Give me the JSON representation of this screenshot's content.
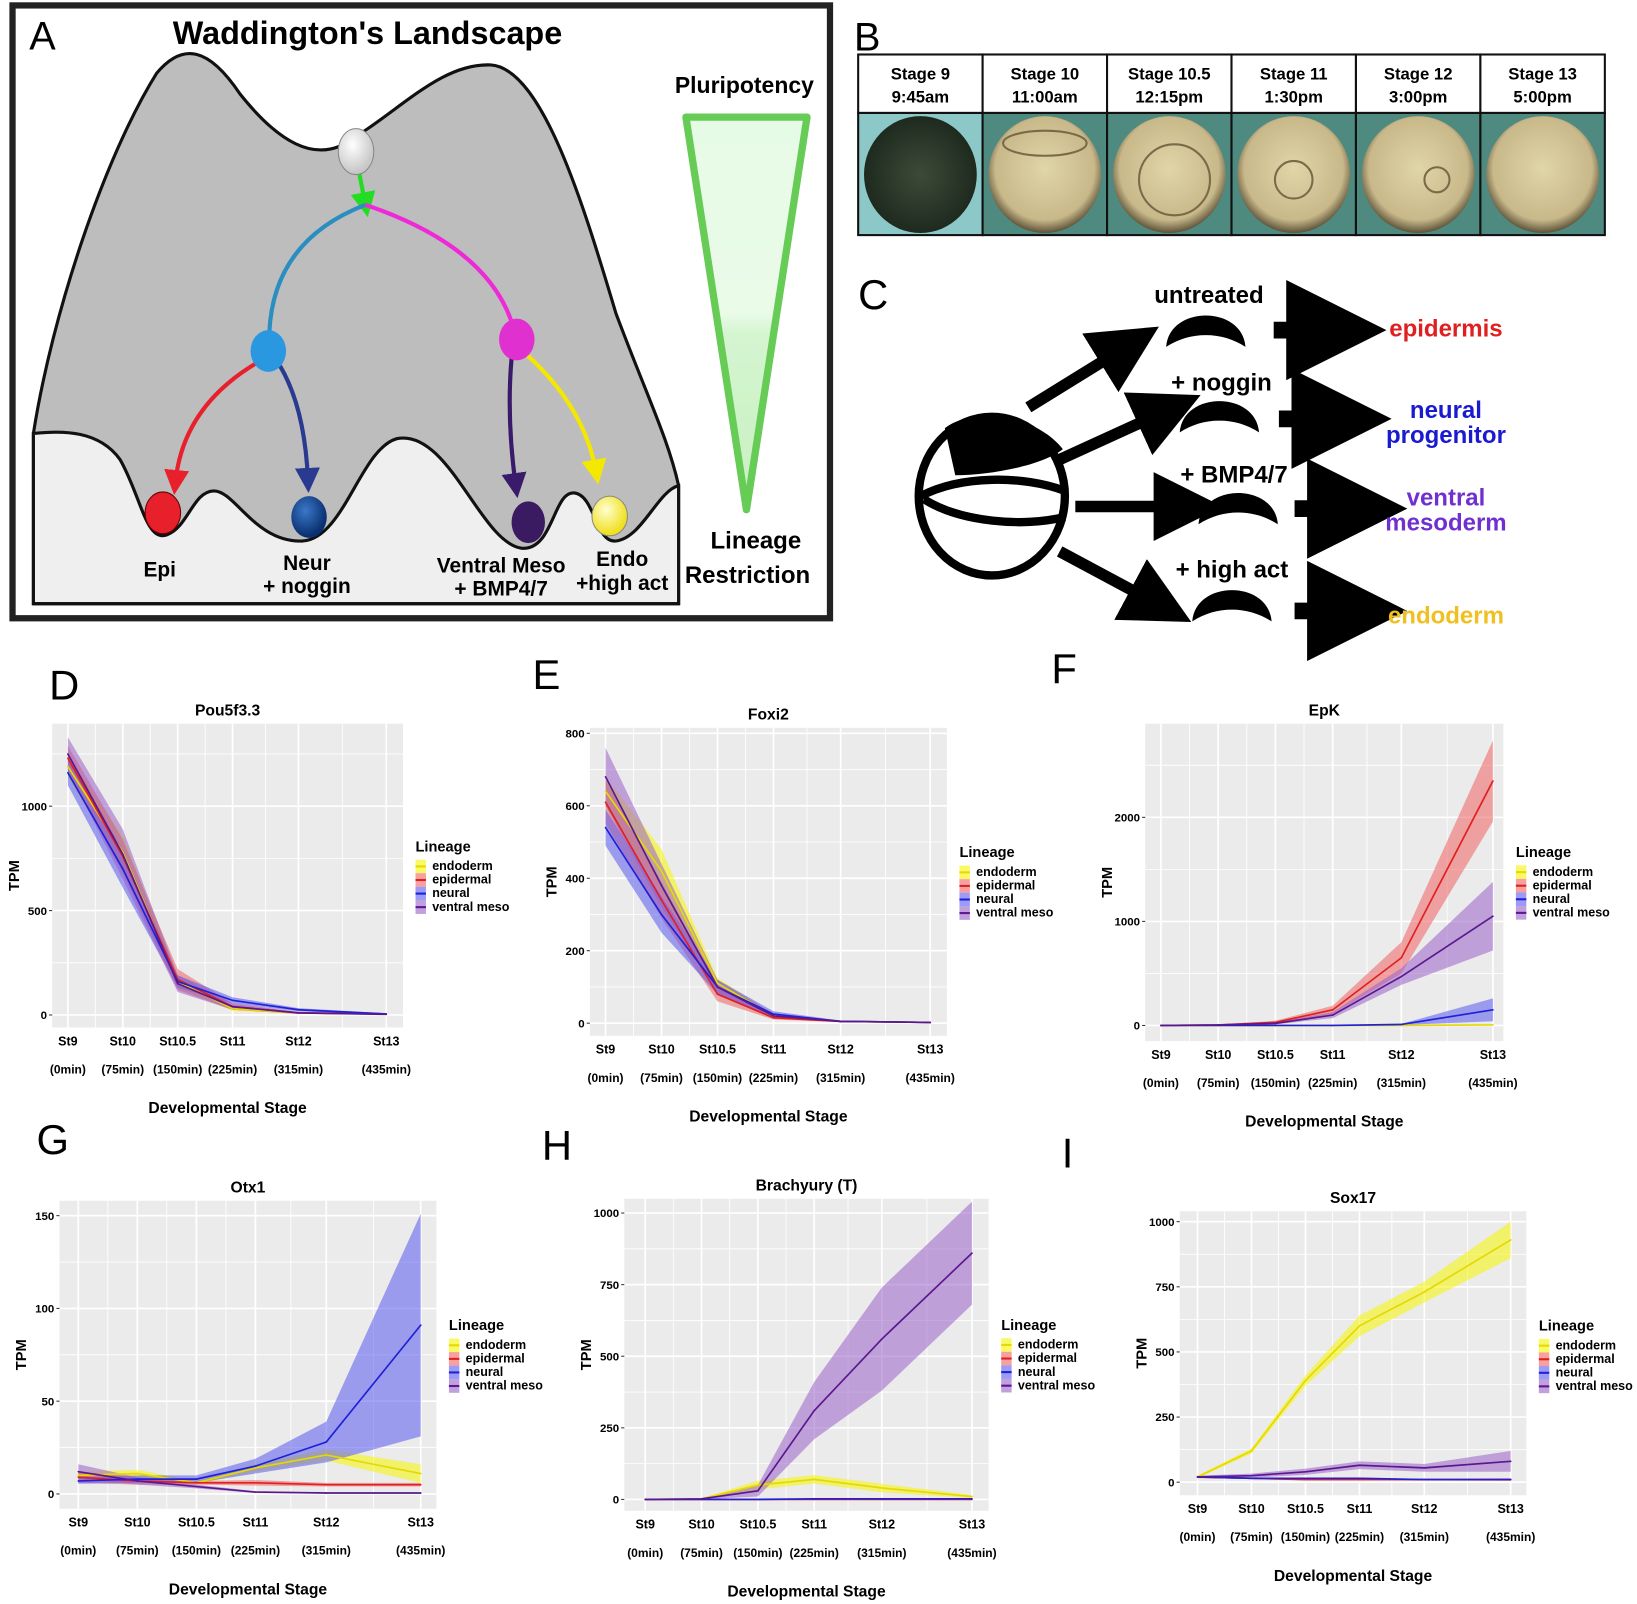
{
  "panel_a": {
    "letter": "A",
    "title": "Waddington's Landscape",
    "labels": {
      "epi": "Epi",
      "neur": "Neur",
      "neur_sub": "+ noggin",
      "vm": "Ventral Meso",
      "vm_sub": "+ BMP4/7",
      "endo": "Endo",
      "endo_sub": "+high act"
    },
    "pluripotency": "Pluripotency",
    "lineage": "Lineage",
    "restriction": "Restriction"
  },
  "panel_b": {
    "letter": "B",
    "stages": [
      {
        "stage": "Stage 9",
        "time": "9:45am"
      },
      {
        "stage": "Stage 10",
        "time": "11:00am"
      },
      {
        "stage": "Stage 10.5",
        "time": "12:15pm"
      },
      {
        "stage": "Stage 11",
        "time": "1:30pm"
      },
      {
        "stage": "Stage 12",
        "time": "3:00pm"
      },
      {
        "stage": "Stage 13",
        "time": "5:00pm"
      }
    ]
  },
  "panel_c": {
    "letter": "C",
    "treatments": [
      "untreated",
      "+ noggin",
      "+ BMP4/7",
      "+ high act"
    ],
    "outcomes": [
      {
        "lines": [
          "epidermis"
        ],
        "color": "#e02020"
      },
      {
        "lines": [
          "neural",
          "progenitor"
        ],
        "color": "#1a1ad0"
      },
      {
        "lines": [
          "ventral",
          "mesoderm"
        ],
        "color": "#7030d0"
      },
      {
        "lines": [
          "endoderm"
        ],
        "color": "#f0c020"
      }
    ]
  },
  "colors": {
    "endoderm": {
      "line": "#e6d800",
      "band": "#f5f500"
    },
    "epidermal": {
      "line": "#e02020",
      "band": "#f06060"
    },
    "neural": {
      "line": "#2020d8",
      "band": "#5a5af0"
    },
    "ventral meso": {
      "line": "#5a1890",
      "band": "#9a60c8"
    }
  },
  "chart_data": [
    {
      "letter": "D",
      "type": "line",
      "title": "Pou5f3.3",
      "xlabel": "Developmental Stage",
      "ylabel": "TPM",
      "categories": [
        "St9",
        "St10",
        "St10.5",
        "St11",
        "St12",
        "St13"
      ],
      "sublabels": [
        "(0min)",
        "(75min)",
        "(150min)",
        "(225min)",
        "(315min)",
        "(435min)"
      ],
      "x": [
        0,
        75,
        150,
        225,
        315,
        435
      ],
      "ylim": [
        -60,
        1395
      ],
      "yticks": [
        0,
        500,
        1000
      ],
      "grid": true,
      "legend_title": "Lineage",
      "legend": "right",
      "series": [
        {
          "name": "endoderm",
          "values": [
            1190,
            780,
            160,
            30,
            10,
            5
          ],
          "spread": [
            50,
            80,
            30,
            10,
            5,
            3
          ]
        },
        {
          "name": "epidermal",
          "values": [
            1230,
            760,
            170,
            40,
            10,
            5
          ],
          "spread": [
            60,
            80,
            50,
            15,
            5,
            3
          ]
        },
        {
          "name": "neural",
          "values": [
            1160,
            700,
            160,
            70,
            25,
            5
          ],
          "spread": [
            60,
            90,
            30,
            15,
            8,
            3
          ]
        },
        {
          "name": "ventral meso",
          "values": [
            1250,
            770,
            150,
            40,
            10,
            3
          ],
          "spread": [
            80,
            120,
            40,
            15,
            5,
            3
          ]
        }
      ]
    },
    {
      "letter": "E",
      "type": "line",
      "title": "Foxi2",
      "xlabel": "Developmental Stage",
      "ylabel": "TPM",
      "categories": [
        "St9",
        "St10",
        "St10.5",
        "St11",
        "St12",
        "St13"
      ],
      "sublabels": [
        "(0min)",
        "(75min)",
        "(150min)",
        "(225min)",
        "(315min)",
        "(435min)"
      ],
      "x": [
        0,
        75,
        150,
        225,
        315,
        435
      ],
      "ylim": [
        -35,
        815
      ],
      "yticks": [
        0,
        200,
        400,
        600,
        800
      ],
      "grid": true,
      "legend_title": "Lineage",
      "legend": "right",
      "series": [
        {
          "name": "endoderm",
          "values": [
            640,
            420,
            110,
            20,
            5,
            2
          ],
          "spread": [
            40,
            60,
            15,
            5,
            2,
            1
          ]
        },
        {
          "name": "epidermal",
          "values": [
            610,
            340,
            80,
            15,
            5,
            2
          ],
          "spread": [
            60,
            50,
            20,
            5,
            2,
            1
          ]
        },
        {
          "name": "neural",
          "values": [
            540,
            300,
            100,
            25,
            5,
            2
          ],
          "spread": [
            50,
            50,
            20,
            8,
            2,
            1
          ]
        },
        {
          "name": "ventral meso",
          "values": [
            680,
            380,
            100,
            20,
            5,
            2
          ],
          "spread": [
            80,
            60,
            20,
            5,
            2,
            1
          ]
        }
      ]
    },
    {
      "letter": "F",
      "type": "line",
      "title": "EpK",
      "xlabel": "Developmental Stage",
      "ylabel": "TPM",
      "categories": [
        "St9",
        "St10",
        "St10.5",
        "St11",
        "St12",
        "St13"
      ],
      "sublabels": [
        "(0min)",
        "(75min)",
        "(150min)",
        "(225min)",
        "(315min)",
        "(435min)"
      ],
      "x": [
        0,
        75,
        150,
        225,
        315,
        435
      ],
      "ylim": [
        -150,
        2900
      ],
      "yticks": [
        0,
        1000,
        2000
      ],
      "grid": true,
      "legend_title": "Lineage",
      "legend": "right",
      "series": [
        {
          "name": "endoderm",
          "values": [
            0,
            0,
            0,
            0,
            0,
            5
          ],
          "spread": [
            0,
            0,
            0,
            0,
            2,
            5
          ]
        },
        {
          "name": "epidermal",
          "values": [
            0,
            5,
            30,
            150,
            650,
            2350
          ],
          "spread": [
            2,
            5,
            15,
            40,
            150,
            390
          ]
        },
        {
          "name": "neural",
          "values": [
            0,
            0,
            0,
            0,
            10,
            150
          ],
          "spread": [
            0,
            0,
            1,
            2,
            5,
            110
          ]
        },
        {
          "name": "ventral meso",
          "values": [
            0,
            5,
            20,
            100,
            470,
            1050
          ],
          "spread": [
            2,
            5,
            10,
            30,
            80,
            330
          ]
        }
      ]
    },
    {
      "letter": "G",
      "type": "line",
      "title": "Otx1",
      "xlabel": "Developmental Stage",
      "ylabel": "TPM",
      "categories": [
        "St9",
        "St10",
        "St10.5",
        "St11",
        "St12",
        "St13"
      ],
      "sublabels": [
        "(0min)",
        "(75min)",
        "(150min)",
        "(225min)",
        "(315min)",
        "(435min)"
      ],
      "x": [
        0,
        75,
        150,
        225,
        315,
        435
      ],
      "ylim": [
        -8,
        158
      ],
      "yticks": [
        0,
        50,
        100,
        150
      ],
      "grid": true,
      "legend_title": "Lineage",
      "legend": "right",
      "series": [
        {
          "name": "endoderm",
          "values": [
            10,
            11,
            6,
            14,
            21,
            11
          ],
          "spread": [
            2,
            2,
            1,
            2,
            3,
            5
          ]
        },
        {
          "name": "epidermal",
          "values": [
            9,
            7,
            6,
            6,
            5,
            5
          ],
          "spread": [
            3,
            2,
            1,
            1.5,
            1,
            1
          ]
        },
        {
          "name": "neural",
          "values": [
            7,
            8,
            8,
            15,
            28,
            91
          ],
          "spread": [
            1.5,
            2,
            2,
            4,
            11,
            60
          ]
        },
        {
          "name": "ventral meso",
          "values": [
            12,
            7,
            4,
            1,
            0.5,
            0.5
          ],
          "spread": [
            4,
            2,
            1,
            0.5,
            0.3,
            0.3
          ]
        }
      ]
    },
    {
      "letter": "H",
      "type": "line",
      "title": "Brachyury (T)",
      "xlabel": "Developmental Stage",
      "ylabel": "TPM",
      "categories": [
        "St9",
        "St10",
        "St10.5",
        "St11",
        "St12",
        "St13"
      ],
      "sublabels": [
        "(0min)",
        "(75min)",
        "(150min)",
        "(225min)",
        "(315min)",
        "(435min)"
      ],
      "x": [
        0,
        75,
        150,
        225,
        315,
        435
      ],
      "ylim": [
        -40,
        1050
      ],
      "yticks": [
        0,
        250,
        500,
        750,
        1000
      ],
      "grid": true,
      "legend_title": "Lineage",
      "legend": "right",
      "series": [
        {
          "name": "endoderm",
          "values": [
            0,
            2,
            50,
            70,
            40,
            10
          ],
          "spread": [
            0,
            2,
            15,
            15,
            15,
            5
          ]
        },
        {
          "name": "epidermal",
          "values": [
            0,
            0,
            0,
            0,
            0,
            0
          ],
          "spread": [
            0,
            0,
            0,
            0,
            0,
            0
          ]
        },
        {
          "name": "neural",
          "values": [
            0,
            0,
            0,
            2,
            2,
            2
          ],
          "spread": [
            0,
            0,
            0,
            1,
            1,
            1
          ]
        },
        {
          "name": "ventral meso",
          "values": [
            0,
            2,
            30,
            310,
            560,
            860
          ],
          "spread": [
            0,
            2,
            20,
            100,
            180,
            180
          ]
        }
      ]
    },
    {
      "letter": "I",
      "type": "line",
      "title": "Sox17",
      "xlabel": "Developmental Stage",
      "ylabel": "TPM",
      "categories": [
        "St9",
        "St10",
        "St10.5",
        "St11",
        "St12",
        "St13"
      ],
      "sublabels": [
        "(0min)",
        "(75min)",
        "(150min)",
        "(225min)",
        "(315min)",
        "(435min)"
      ],
      "x": [
        0,
        75,
        150,
        225,
        315,
        435
      ],
      "ylim": [
        -50,
        1040
      ],
      "yticks": [
        0,
        250,
        500,
        750,
        1000
      ],
      "grid": true,
      "legend_title": "Lineage",
      "legend": "right",
      "series": [
        {
          "name": "endoderm",
          "values": [
            20,
            120,
            390,
            600,
            730,
            930
          ],
          "spread": [
            5,
            10,
            20,
            40,
            40,
            70
          ]
        },
        {
          "name": "epidermal",
          "values": [
            20,
            15,
            10,
            10,
            10,
            10
          ],
          "spread": [
            3,
            3,
            3,
            3,
            3,
            5
          ]
        },
        {
          "name": "neural",
          "values": [
            20,
            15,
            15,
            15,
            10,
            10
          ],
          "spread": [
            3,
            3,
            3,
            3,
            3,
            3
          ]
        },
        {
          "name": "ventral meso",
          "values": [
            20,
            25,
            40,
            65,
            55,
            80
          ],
          "spread": [
            5,
            8,
            12,
            15,
            15,
            40
          ]
        }
      ]
    }
  ]
}
